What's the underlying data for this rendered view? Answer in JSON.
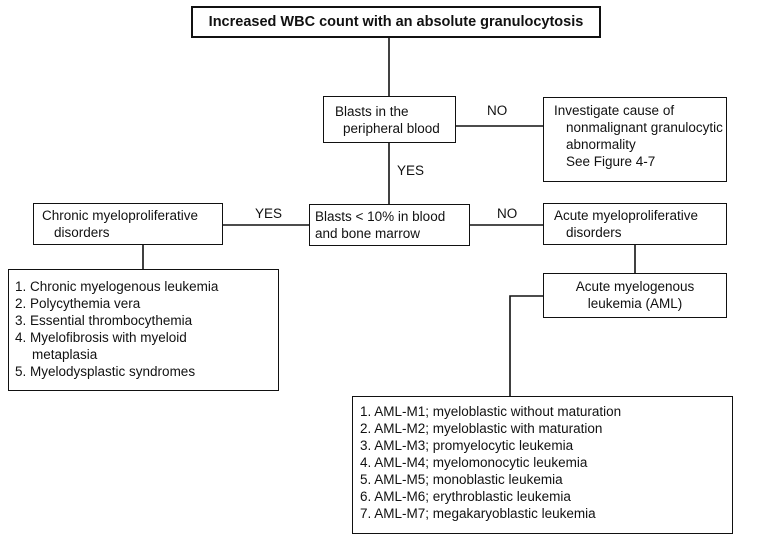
{
  "title": "Increased WBC count with an absolute granulocytosis",
  "blasts_peripheral": {
    "line1": "Blasts in the",
    "line2": "peripheral blood"
  },
  "investigate": {
    "line1": "Investigate cause of",
    "line2": "nonmalignant granulocytic",
    "line3": "abnormality",
    "line4": "See Figure 4-7"
  },
  "blasts_lt10": {
    "line1": "Blasts < 10% in blood",
    "line2": "and bone marrow"
  },
  "chronic": {
    "line1": "Chronic myeloproliferative",
    "line2": "disorders"
  },
  "acute": {
    "line1": "Acute myeloproliferative",
    "line2": "disorders"
  },
  "aml": {
    "line1": "Acute myelogenous",
    "line2": "leukemia (AML)"
  },
  "chronic_list": [
    "1. Chronic myelogenous leukemia",
    "2. Polycythemia vera",
    "3. Essential thrombocythemia",
    "4. Myelofibrosis with myeloid",
    "metaplasia",
    "5. Myelodysplastic syndromes"
  ],
  "aml_list": [
    "1. AML-M1; myeloblastic without maturation",
    "2. AML-M2; myeloblastic with maturation",
    "3. AML-M3; promyelocytic leukemia",
    "4. AML-M4; myelomonocytic leukemia",
    "5. AML-M5; monoblastic leukemia",
    "6. AML-M6; erythroblastic leukemia",
    "7. AML-M7; megakaryoblastic leukemia"
  ],
  "edge_labels": {
    "no_top": "NO",
    "yes_down": "YES",
    "yes_left": "YES",
    "no_right": "NO"
  }
}
